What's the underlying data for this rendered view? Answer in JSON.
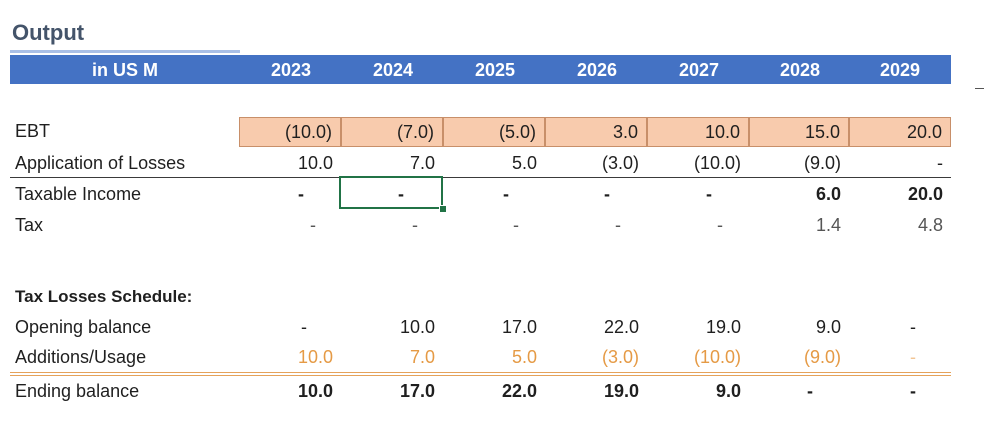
{
  "title": "Output",
  "header": {
    "unit_label": "in US M",
    "years": [
      "2023",
      "2024",
      "2025",
      "2026",
      "2027",
      "2028",
      "2029"
    ]
  },
  "ebt": {
    "label": "EBT",
    "values": [
      "(10.0)",
      "(7.0)",
      "(5.0)",
      "3.0",
      "10.0",
      "15.0",
      "20.0"
    ]
  },
  "application_of_losses": {
    "label": "Application of Losses",
    "values": [
      "10.0",
      "7.0",
      "5.0",
      "(3.0)",
      "(10.0)",
      "(9.0)",
      "-"
    ]
  },
  "taxable_income": {
    "label": "Taxable Income",
    "values": [
      "-",
      "-",
      "-",
      "-",
      "-",
      "6.0",
      "20.0"
    ]
  },
  "tax": {
    "label": "Tax",
    "values": [
      "-",
      "-",
      "-",
      "-",
      "-",
      "1.4",
      "4.8"
    ]
  },
  "schedule": {
    "heading": "Tax Losses Schedule:",
    "opening_balance": {
      "label": "Opening balance",
      "values": [
        "-",
        "10.0",
        "17.0",
        "22.0",
        "19.0",
        "9.0",
        "-"
      ]
    },
    "additions_usage": {
      "label": "Additions/Usage",
      "values": [
        "10.0",
        "7.0",
        "5.0",
        "(3.0)",
        "(10.0)",
        "(9.0)",
        "-"
      ]
    },
    "ending_balance": {
      "label": "Ending balance",
      "values": [
        "10.0",
        "17.0",
        "22.0",
        "19.0",
        "9.0",
        "-",
        "-"
      ]
    }
  },
  "colors": {
    "header_bg": "#4472c4",
    "ebt_fill": "#f8cbad",
    "orange_text": "#e59a45",
    "selection": "#217346"
  }
}
